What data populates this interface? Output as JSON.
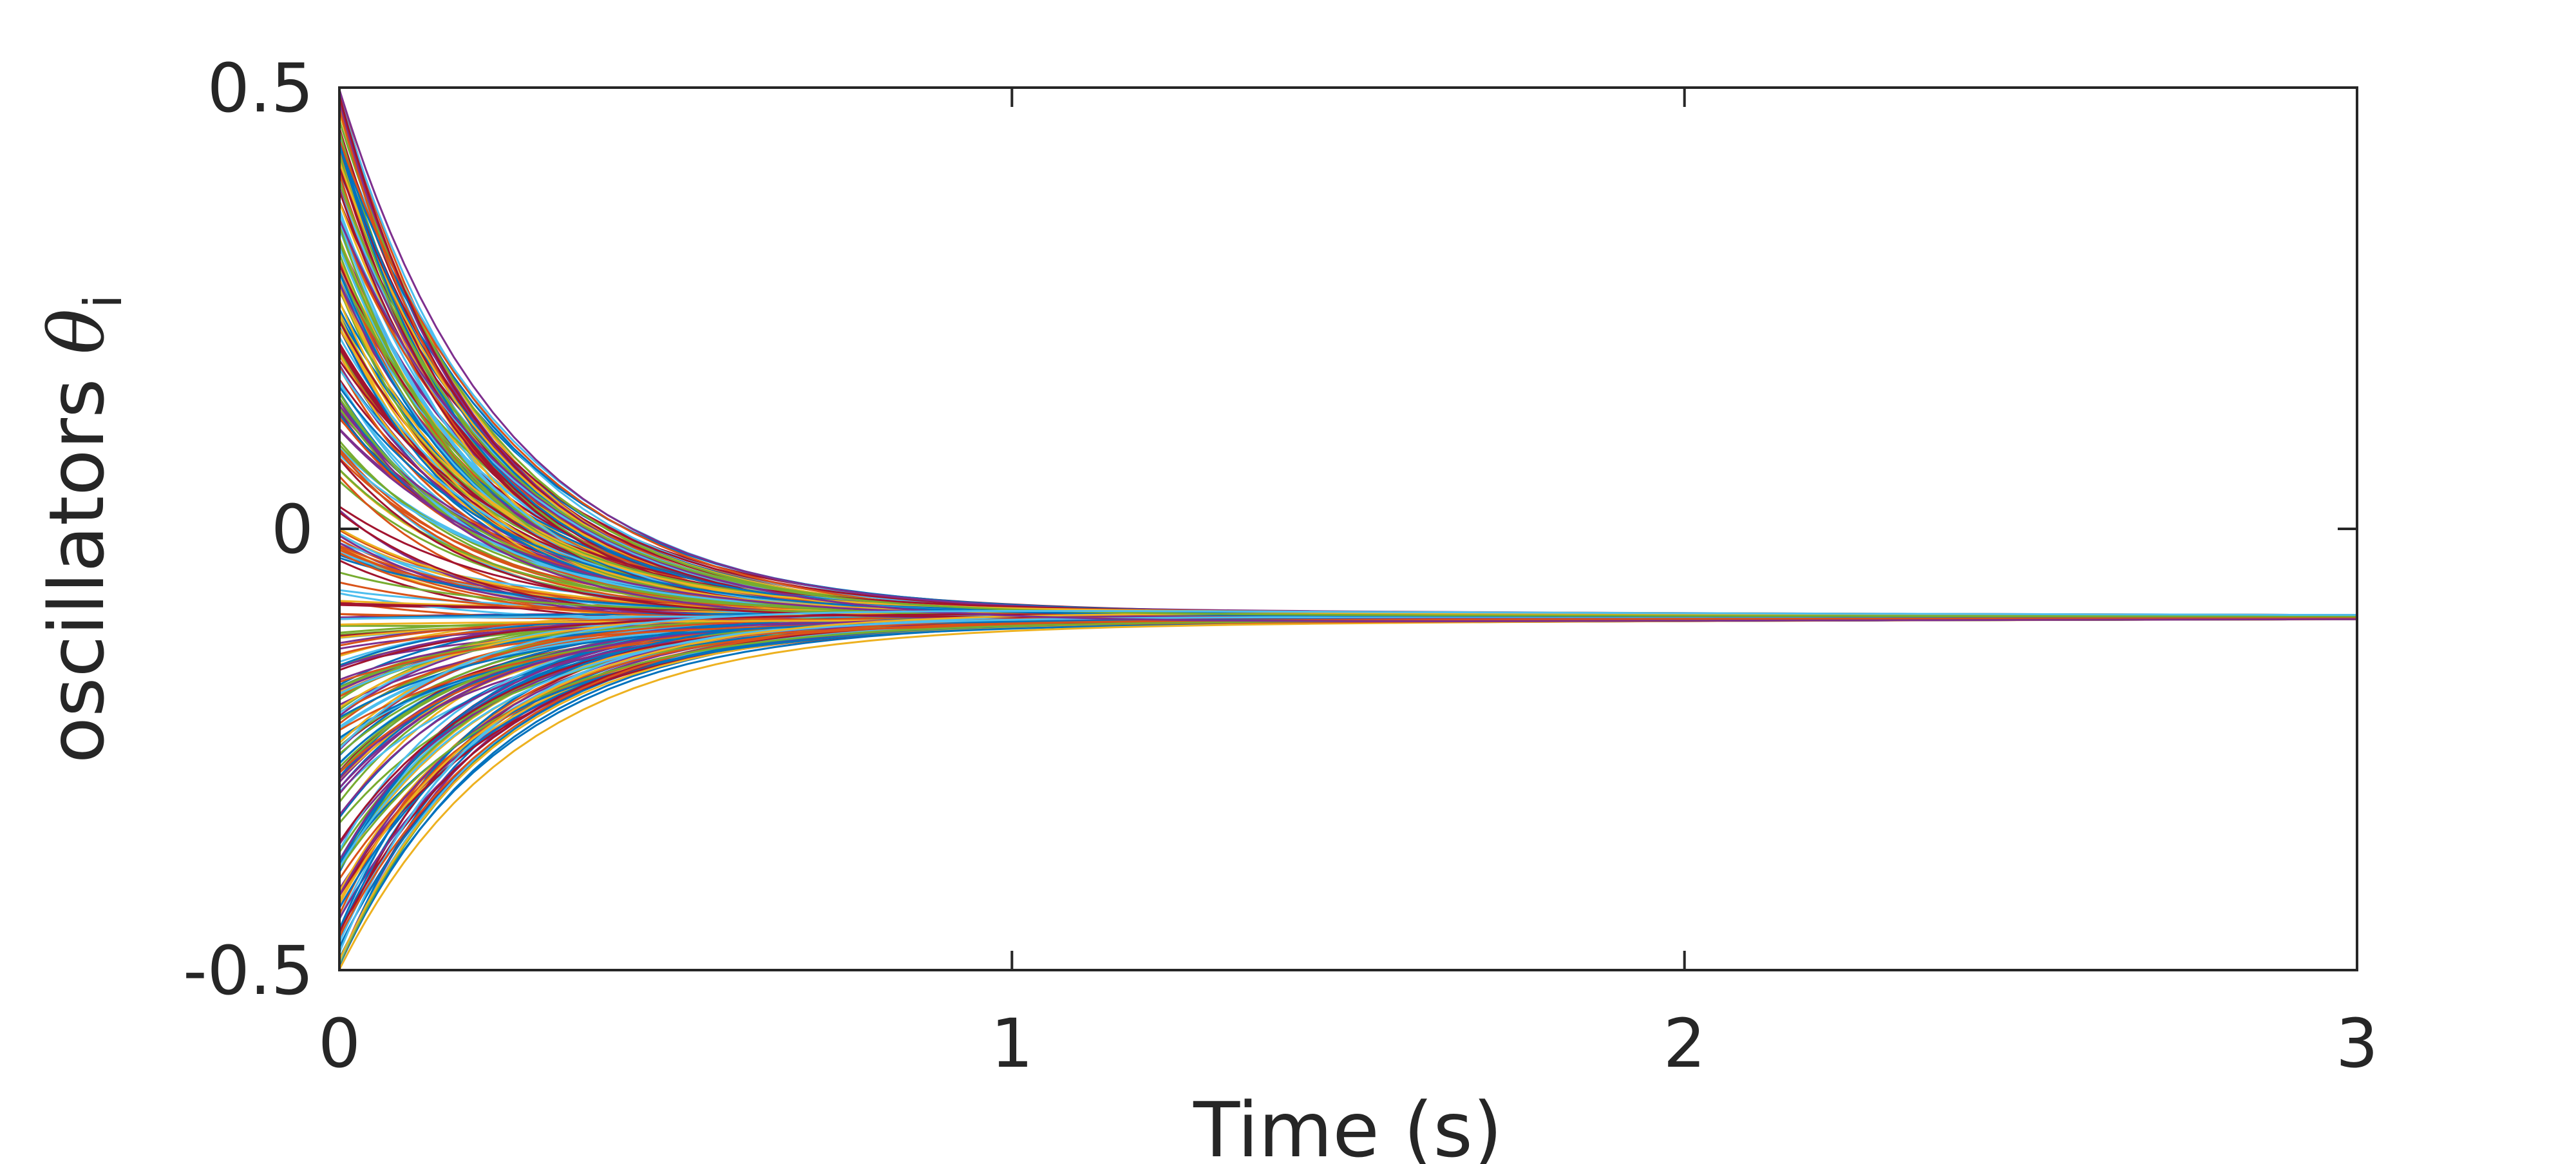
{
  "chart_data": {
    "type": "line",
    "xlabel": "Time (s)",
    "ylabel": {
      "text": "oscillators ",
      "symbol": "θ",
      "subscript": "i"
    },
    "xlim": [
      0,
      3
    ],
    "ylim": [
      -0.5,
      0.5
    ],
    "x_ticks": [
      "0",
      "1",
      "2",
      "3"
    ],
    "y_ticks": [
      "-0.5",
      "0",
      "0.5"
    ],
    "x_tick_values": [
      0,
      1,
      2,
      3
    ],
    "y_tick_values": [
      -0.5,
      0,
      0.5
    ],
    "grid": false,
    "legend": "none",
    "series_description": {
      "trajectory_count": 300,
      "initial_range": [
        -0.5,
        0.5
      ],
      "converged_value": -0.1,
      "converged_spread": [
        -0.115,
        -0.085
      ],
      "decay_rate": 4.5
    },
    "colors": [
      "#0072BD",
      "#D95319",
      "#EDB120",
      "#7E2F8E",
      "#77AC30",
      "#4DBEEE",
      "#A2142F"
    ]
  }
}
